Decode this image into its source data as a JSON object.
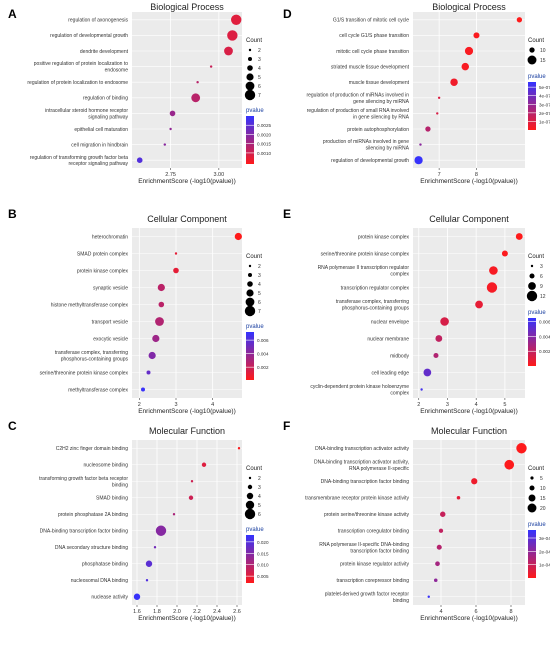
{
  "axis_label": "EnrichmentScore (-log10(pvalue))",
  "legend_count_title": "Count",
  "legend_pvalue_title": "pvalue",
  "colors": {
    "low_pvalue": "#ff1a1a",
    "high_pvalue": "#3333ff",
    "panel_bg": "#ebebeb",
    "grid": "#ffffff"
  },
  "chart_data": [
    {
      "panel": "A",
      "type": "scatter",
      "title": "Biological Process",
      "xlabel": "EnrichmentScore (-log10(pvalue))",
      "xlim": [
        2.55,
        3.12
      ],
      "xticks": [
        2.75,
        3.0
      ],
      "xtick_labels": [
        "2.75",
        "3.00"
      ],
      "color_lim": [
        0.0004,
        0.003
      ],
      "color_ticks": [
        0.0025,
        0.002,
        0.0015,
        0.001
      ],
      "color_tick_labels": [
        "0.0025",
        "0.0020",
        "0.0015",
        "0.0010"
      ],
      "count_lim": [
        2,
        7
      ],
      "count_ticks": [
        2,
        3,
        4,
        5,
        6,
        7
      ],
      "points": [
        {
          "term": "regulation of axonogenesis",
          "x": 3.09,
          "count": 7,
          "pvalue": 0.0008
        },
        {
          "term": "regulation of developmental growth",
          "x": 3.07,
          "count": 7,
          "pvalue": 0.00085
        },
        {
          "term": "dendrite development",
          "x": 3.05,
          "count": 6,
          "pvalue": 0.0009
        },
        {
          "term": "positive regulation of protein localization to endosome",
          "x": 2.96,
          "count": 2,
          "pvalue": 0.0011
        },
        {
          "term": "regulation of protein localization to endosome",
          "x": 2.89,
          "count": 2,
          "pvalue": 0.0013
        },
        {
          "term": "regulation of binding",
          "x": 2.88,
          "count": 6,
          "pvalue": 0.0013
        },
        {
          "term": "intracellular steroid hormone receptor signaling pathway",
          "x": 2.76,
          "count": 4,
          "pvalue": 0.0017
        },
        {
          "term": "epithelial cell maturation",
          "x": 2.75,
          "count": 2,
          "pvalue": 0.0018
        },
        {
          "term": "cell migration in hindbrain",
          "x": 2.72,
          "count": 2,
          "pvalue": 0.0019
        },
        {
          "term": "regulation of transforming growth factor beta receptor signaling pathway",
          "x": 2.59,
          "count": 4,
          "pvalue": 0.0026
        }
      ]
    },
    {
      "panel": "B",
      "type": "scatter",
      "title": "Cellular Component",
      "xlabel": "EnrichmentScore (-log10(pvalue))",
      "xlim": [
        1.8,
        4.8
      ],
      "xticks": [
        2,
        3,
        4
      ],
      "xtick_labels": [
        "2",
        "3",
        "4"
      ],
      "color_lim": [
        0.0001,
        0.0072
      ],
      "color_ticks": [
        0.006,
        0.004,
        0.002
      ],
      "color_tick_labels": [
        "0.006",
        "0.004",
        "0.002"
      ],
      "count_lim": [
        2,
        7
      ],
      "count_ticks": [
        2,
        3,
        4,
        5,
        6,
        7
      ],
      "points": [
        {
          "term": "heterochromatin",
          "x": 4.7,
          "count": 5,
          "pvalue": 0.0001
        },
        {
          "term": "SMAD protein complex",
          "x": 3.0,
          "count": 2,
          "pvalue": 0.001
        },
        {
          "term": "protein kinase complex",
          "x": 3.0,
          "count": 4,
          "pvalue": 0.001
        },
        {
          "term": "synaptic vesicle",
          "x": 2.6,
          "count": 5,
          "pvalue": 0.0025
        },
        {
          "term": "histone methyltransferase complex",
          "x": 2.6,
          "count": 4,
          "pvalue": 0.0025
        },
        {
          "term": "transport vesicle",
          "x": 2.55,
          "count": 6,
          "pvalue": 0.0028
        },
        {
          "term": "exocytic vesicle",
          "x": 2.45,
          "count": 5,
          "pvalue": 0.0035
        },
        {
          "term": "transferase complex, transferring phosphorus-containing groups",
          "x": 2.35,
          "count": 5,
          "pvalue": 0.0045
        },
        {
          "term": "serine/threonine protein kinase complex",
          "x": 2.25,
          "count": 3,
          "pvalue": 0.0055
        },
        {
          "term": "methyltransferase complex",
          "x": 2.1,
          "count": 3,
          "pvalue": 0.007
        }
      ]
    },
    {
      "panel": "C",
      "type": "scatter",
      "title": "Molecular Function",
      "xlabel": "EnrichmentScore (-log10(pvalue))",
      "xlim": [
        1.55,
        2.65
      ],
      "xticks": [
        1.6,
        1.8,
        2.0,
        2.2,
        2.4,
        2.6
      ],
      "xtick_labels": [
        "1.6",
        "1.8",
        "2.0",
        "2.2",
        "2.4",
        "2.6"
      ],
      "color_lim": [
        0.002,
        0.023
      ],
      "color_ticks": [
        0.02,
        0.015,
        0.01,
        0.005
      ],
      "color_tick_labels": [
        "0.020",
        "0.015",
        "0.010",
        "0.005"
      ],
      "count_lim": [
        2,
        6
      ],
      "count_ticks": [
        2,
        3,
        4,
        5,
        6
      ],
      "points": [
        {
          "term": "C2H2 zinc finger domain binding",
          "x": 2.62,
          "count": 2,
          "pvalue": 0.0024
        },
        {
          "term": "nucleosome binding",
          "x": 2.27,
          "count": 3,
          "pvalue": 0.0054
        },
        {
          "term": "transforming growth factor beta receptor binding",
          "x": 2.15,
          "count": 2,
          "pvalue": 0.0071
        },
        {
          "term": "SMAD binding",
          "x": 2.14,
          "count": 3,
          "pvalue": 0.0072
        },
        {
          "term": "protein phosphatase 2A binding",
          "x": 1.97,
          "count": 2,
          "pvalue": 0.0107
        },
        {
          "term": "DNA-binding transcription factor binding",
          "x": 1.84,
          "count": 6,
          "pvalue": 0.0145
        },
        {
          "term": "DNA secondary structure binding",
          "x": 1.78,
          "count": 2,
          "pvalue": 0.0166
        },
        {
          "term": "phosphatase binding",
          "x": 1.72,
          "count": 4,
          "pvalue": 0.019
        },
        {
          "term": "nucleosomal DNA binding",
          "x": 1.7,
          "count": 2,
          "pvalue": 0.02
        },
        {
          "term": "nuclease activity",
          "x": 1.6,
          "count": 4,
          "pvalue": 0.0225
        }
      ]
    },
    {
      "panel": "D",
      "type": "scatter",
      "title": "Biological Process",
      "xlabel": "EnrichmentScore (-log10(pvalue))",
      "xlim": [
        6.3,
        9.3
      ],
      "xticks": [
        7,
        8
      ],
      "xtick_labels": [
        "7",
        "8"
      ],
      "color_lim": [
        0.0,
        5.6e-07
      ],
      "color_ticks": [
        5e-07,
        4e-07,
        3e-07,
        2e-07,
        1e-07
      ],
      "color_tick_labels": [
        "5e-07",
        "4e-07",
        "3e-07",
        "2e-07",
        "1e-07"
      ],
      "count_lim": [
        6,
        17
      ],
      "count_ticks": [
        10,
        15
      ],
      "points": [
        {
          "term": "G1/S transition of mitotic cell cycle",
          "x": 9.15,
          "count": 10,
          "pvalue": 7e-10
        },
        {
          "term": "cell cycle G1/S phase transition",
          "x": 8.0,
          "count": 11,
          "pvalue": 1e-08
        },
        {
          "term": "mitotic cell cycle phase transition",
          "x": 7.8,
          "count": 14,
          "pvalue": 1.6e-08
        },
        {
          "term": "striated muscle tissue development",
          "x": 7.7,
          "count": 13,
          "pvalue": 2e-08
        },
        {
          "term": "muscle tissue development",
          "x": 7.4,
          "count": 13,
          "pvalue": 4e-08
        },
        {
          "term": "regulation of production of miRNAs involved in gene silencing by miRNA",
          "x": 7.0,
          "count": 6,
          "pvalue": 1e-07
        },
        {
          "term": "regulation of production of small RNA involved in gene silencing by RNA",
          "x": 6.95,
          "count": 6,
          "pvalue": 1.1e-07
        },
        {
          "term": "protein autophosphorylation",
          "x": 6.7,
          "count": 10,
          "pvalue": 2e-07
        },
        {
          "term": "production of miRNAs involved in gene silencing by miRNA",
          "x": 6.5,
          "count": 6,
          "pvalue": 3.2e-07
        },
        {
          "term": "regulation of developmental growth",
          "x": 6.45,
          "count": 14,
          "pvalue": 5.5e-07
        }
      ]
    },
    {
      "panel": "E",
      "type": "scatter",
      "title": "Cellular Component",
      "xlabel": "EnrichmentScore (-log10(pvalue))",
      "xlim": [
        1.8,
        5.7
      ],
      "xticks": [
        2,
        3,
        4,
        5
      ],
      "xtick_labels": [
        "2",
        "3",
        "4",
        "5"
      ],
      "color_lim": [
        0.0,
        0.0065
      ],
      "color_ticks": [
        0.006,
        0.004,
        0.002
      ],
      "color_tick_labels": [
        "0.006",
        "0.004",
        "0.002"
      ],
      "count_lim": [
        3,
        12
      ],
      "count_ticks": [
        3,
        6,
        9,
        12
      ],
      "points": [
        {
          "term": "protein kinase complex",
          "x": 5.5,
          "count": 8,
          "pvalue": 3e-05
        },
        {
          "term": "serine/threonine protein kinase complex",
          "x": 5.0,
          "count": 7,
          "pvalue": 0.0001
        },
        {
          "term": "RNA polymerase II transcription regulator complex",
          "x": 4.6,
          "count": 10,
          "pvalue": 0.00025
        },
        {
          "term": "transcription regulator complex",
          "x": 4.55,
          "count": 12,
          "pvalue": 0.0003
        },
        {
          "term": "transferase complex, transferring phosphorus-containing groups",
          "x": 4.1,
          "count": 9,
          "pvalue": 0.0008
        },
        {
          "term": "nuclear envelope",
          "x": 2.9,
          "count": 10,
          "pvalue": 0.0013
        },
        {
          "term": "nuclear membrane",
          "x": 2.7,
          "count": 8,
          "pvalue": 0.002
        },
        {
          "term": "midbody",
          "x": 2.6,
          "count": 6,
          "pvalue": 0.0025
        },
        {
          "term": "cell leading edge",
          "x": 2.3,
          "count": 9,
          "pvalue": 0.005
        },
        {
          "term": "cyclin-dependent protein kinase holoenzyme complex",
          "x": 2.1,
          "count": 3,
          "pvalue": 0.006
        }
      ]
    },
    {
      "panel": "F",
      "type": "scatter",
      "title": "Molecular Function",
      "xlabel": "EnrichmentScore (-log10(pvalue))",
      "xlim": [
        2.4,
        8.8
      ],
      "xticks": [
        4,
        6,
        8
      ],
      "xtick_labels": [
        "4",
        "6",
        "8"
      ],
      "color_lim": [
        0.0,
        0.00036
      ],
      "color_ticks": [
        0.0003,
        0.0002,
        0.0001
      ],
      "color_tick_labels": [
        "3e-04",
        "2e-04",
        "1e-04"
      ],
      "count_lim": [
        3,
        24
      ],
      "count_ticks": [
        5,
        10,
        15,
        20
      ],
      "points": [
        {
          "term": "DNA-binding transcription activator activity",
          "x": 8.6,
          "count": 24,
          "pvalue": 1e-06
        },
        {
          "term": "DNA-binding transcription activator activity, RNA polymerase II-specific",
          "x": 7.9,
          "count": 22,
          "pvalue": 3e-06
        },
        {
          "term": "DNA-binding transcription factor binding",
          "x": 5.9,
          "count": 13,
          "pvalue": 3e-05
        },
        {
          "term": "transmembrane receptor protein kinase activity",
          "x": 5.0,
          "count": 6,
          "pvalue": 5e-05
        },
        {
          "term": "protein serine/threonine kinase activity",
          "x": 4.1,
          "count": 11,
          "pvalue": 0.0001
        },
        {
          "term": "transcription coregulator binding",
          "x": 4.0,
          "count": 8,
          "pvalue": 0.00011
        },
        {
          "term": "RNA polymerase II-specific DNA-binding transcription factor binding",
          "x": 3.9,
          "count": 10,
          "pvalue": 0.00013
        },
        {
          "term": "protein kinase regulator activity",
          "x": 3.8,
          "count": 9,
          "pvalue": 0.00016
        },
        {
          "term": "transcription corepressor binding",
          "x": 3.7,
          "count": 6,
          "pvalue": 0.0002
        },
        {
          "term": "platelet-derived growth factor receptor binding",
          "x": 3.3,
          "count": 3,
          "pvalue": 0.00035
        }
      ]
    }
  ]
}
